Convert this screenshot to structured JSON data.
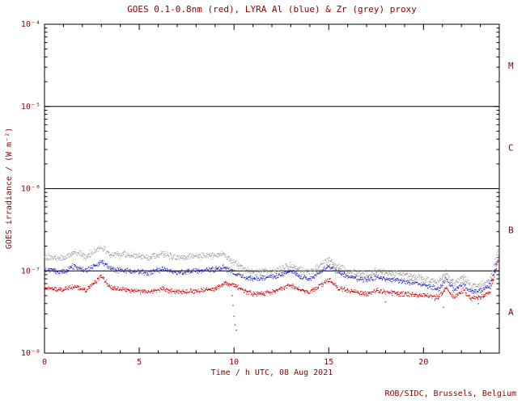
{
  "text_color": "#8b0000",
  "frame_color": "#000000",
  "background_color": "#ffffff",
  "chart_data": {
    "type": "scatter",
    "title": "GOES 0.1-0.8nm (red), LYRA Al (blue) & Zr (grey) proxy",
    "xlabel": "Time / h UTC, 08 Aug 2021",
    "ylabel": "GOES irradiance / (W m⁻²)",
    "credit": "ROB/SIDC, Brussels, Belgium",
    "x_range": [
      0,
      24
    ],
    "y_range_log10": [
      -8,
      -4
    ],
    "grid": false,
    "legend": "encoded in title colors",
    "x_major_ticks": [
      0,
      5,
      10,
      15,
      20
    ],
    "x_minor_tick_step": 1,
    "y_ticks": [
      {
        "label": "10⁻⁴",
        "value": 0.0001
      },
      {
        "label": "10⁻⁵",
        "value": 1e-05
      },
      {
        "label": "10⁻⁶",
        "value": 1e-06
      },
      {
        "label": "10⁻⁷",
        "value": 1e-07
      },
      {
        "label": "10⁻⁸",
        "value": 1e-08
      }
    ],
    "hlines": [
      1e-05,
      1e-06,
      1e-07
    ],
    "flare_class_labels": [
      {
        "label": "M",
        "value": 3.16e-05
      },
      {
        "label": "C",
        "value": 3.16e-06
      },
      {
        "label": "B",
        "value": 3.16e-07
      },
      {
        "label": "A",
        "value": 3.16e-08
      }
    ],
    "x_common": [
      0,
      1,
      1.6,
      2.2,
      3,
      3.5,
      4.5,
      5.5,
      6.2,
      7,
      8,
      9,
      9.5,
      10,
      10.5,
      11,
      12,
      13,
      13.5,
      14,
      15,
      15.5,
      16,
      17,
      17.5,
      18,
      19,
      20,
      20.8,
      21.2,
      21.6,
      22.1,
      22.5,
      23,
      23.5,
      24
    ],
    "series": [
      {
        "name": "LYRA Zr proxy",
        "color": "#9a9a9a",
        "seed": 101,
        "jitter": 0.05,
        "y": [
          1.5e-07,
          1.4e-07,
          1.7e-07,
          1.5e-07,
          1.95e-07,
          1.6e-07,
          1.55e-07,
          1.45e-07,
          1.6e-07,
          1.45e-07,
          1.5e-07,
          1.55e-07,
          1.6e-07,
          1.25e-07,
          1.05e-07,
          9.5e-08,
          1e-07,
          1.15e-07,
          1e-07,
          9.5e-08,
          1.35e-07,
          1.1e-07,
          1e-07,
          9e-08,
          1e-07,
          9.5e-08,
          9e-08,
          8e-08,
          7.2e-08,
          9.5e-08,
          7e-08,
          8.5e-08,
          6.5e-08,
          6.8e-08,
          7.5e-08,
          2e-07
        ]
      },
      {
        "name": "LYRA Al proxy",
        "color": "#2222bb",
        "seed": 202,
        "jitter": 0.04,
        "y": [
          1.05e-07,
          9.5e-08,
          1.15e-07,
          1e-07,
          1.3e-07,
          1.05e-07,
          1e-07,
          9.5e-08,
          1.05e-07,
          9.5e-08,
          1e-07,
          1.05e-07,
          1.1e-07,
          9.5e-08,
          8.5e-08,
          8e-08,
          8.5e-08,
          1e-07,
          8.5e-08,
          8e-08,
          1.15e-07,
          9.5e-08,
          8.5e-08,
          7.8e-08,
          8.5e-08,
          8e-08,
          7.5e-08,
          6.8e-08,
          6e-08,
          8e-08,
          5.8e-08,
          7e-08,
          5.5e-08,
          5.8e-08,
          6.5e-08,
          1.6e-07
        ]
      },
      {
        "name": "GOES 0.1-0.8nm",
        "color": "#cc0000",
        "seed": 303,
        "jitter": 0.035,
        "y": [
          6.2e-08,
          5.8e-08,
          6.5e-08,
          5.8e-08,
          8.5e-08,
          6.2e-08,
          5.8e-08,
          5.5e-08,
          6e-08,
          5.5e-08,
          5.7e-08,
          6e-08,
          7.2e-08,
          6.8e-08,
          5.8e-08,
          5.2e-08,
          5.5e-08,
          6.8e-08,
          5.8e-08,
          5.5e-08,
          7.8e-08,
          6.2e-08,
          5.8e-08,
          5.2e-08,
          5.8e-08,
          5.5e-08,
          5.2e-08,
          5e-08,
          4.8e-08,
          6.2e-08,
          4.7e-08,
          5.8e-08,
          4.6e-08,
          4.8e-08,
          5.5e-08,
          1.5e-07
        ]
      }
    ],
    "outliers": {
      "color": "#6a6a9a",
      "points": [
        [
          9.9,
          5e-08
        ],
        [
          9.95,
          3.8e-08
        ],
        [
          10.0,
          2.8e-08
        ],
        [
          10.05,
          2.2e-08
        ],
        [
          10.12,
          1.9e-08
        ],
        [
          18.0,
          4.2e-08
        ],
        [
          20.6,
          4.4e-08
        ],
        [
          21.05,
          3.6e-08
        ],
        [
          22.9,
          4e-08
        ]
      ]
    }
  }
}
